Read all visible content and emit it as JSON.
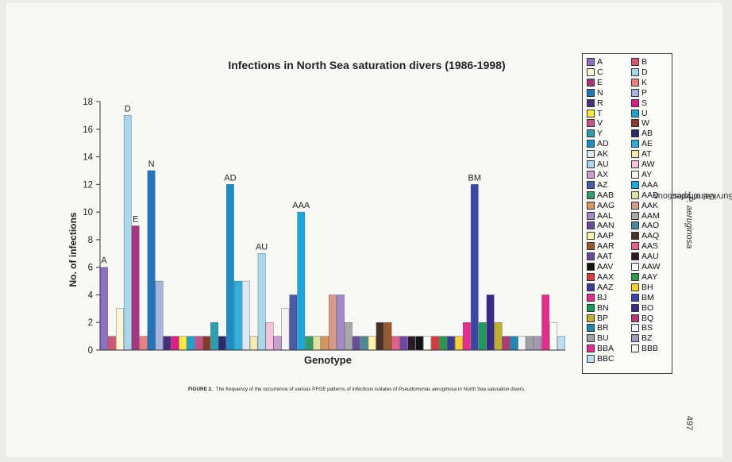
{
  "chart_data": {
    "type": "bar",
    "title": "Infections in North Sea saturation divers (1986-1998)",
    "xlabel": "Genotype",
    "ylabel": "No. of infections",
    "ylim": [
      0,
      18
    ],
    "yticks": [
      0,
      2,
      4,
      6,
      8,
      10,
      12,
      14,
      16,
      18
    ],
    "legend_position": "right",
    "grid": false,
    "categories": [
      "A",
      "B",
      "C",
      "D",
      "E",
      "K",
      "N",
      "P",
      "R",
      "S",
      "T",
      "U",
      "V",
      "W",
      "Y",
      "AB",
      "AD",
      "AE",
      "AK",
      "AT",
      "AU",
      "AW",
      "AX",
      "AY",
      "AZ",
      "AAA",
      "AAB",
      "AAD",
      "AAG",
      "AAK",
      "AAL",
      "AAM",
      "AAN",
      "AAO",
      "AAP",
      "AAQ",
      "AAR",
      "AAS",
      "AAT",
      "AAU",
      "AAV",
      "AAW",
      "AAX",
      "AAY",
      "AAZ",
      "BH",
      "BJ",
      "BM",
      "BN",
      "BO",
      "BP",
      "BQ",
      "BR",
      "BS",
      "BU",
      "BZ",
      "BBA",
      "BBB",
      "BBC"
    ],
    "values": [
      6,
      1,
      3,
      17,
      9,
      1,
      13,
      5,
      1,
      1,
      1,
      1,
      1,
      1,
      2,
      1,
      12,
      5,
      5,
      1,
      7,
      2,
      1,
      3,
      4,
      10,
      1,
      1,
      1,
      4,
      4,
      2,
      1,
      1,
      1,
      2,
      2,
      1,
      1,
      1,
      1,
      1,
      1,
      1,
      1,
      1,
      2,
      12,
      2,
      4,
      2,
      1,
      1,
      1,
      1,
      1,
      4,
      2,
      1
    ],
    "colors": [
      "#8e6fc6",
      "#d9566f",
      "#fff6d8",
      "#a8d8f0",
      "#a8357f",
      "#ee8080",
      "#1e77be",
      "#a7b4dd",
      "#4a2e7c",
      "#e21c87",
      "#ffe93c",
      "#1aa3cf",
      "#c7508a",
      "#8a3a2a",
      "#2aa0b0",
      "#2a2a6e",
      "#1a8ec7",
      "#2bb0e0",
      "#d9eaf2",
      "#f5eab0",
      "#a8d8ec",
      "#f4c4dc",
      "#c9a0cf",
      "#f4f4f0",
      "#4a5aa8",
      "#17a9e0",
      "#2f9b68",
      "#e2e2a0",
      "#d8955a",
      "#d99a8a",
      "#a08ac8",
      "#a8a8a8",
      "#6a4a9a",
      "#4a8a98",
      "#fff2a8",
      "#4a3026",
      "#9a5a30",
      "#ec5e8a",
      "#6a4aa8",
      "#2a1a2a",
      "#121212",
      "#fafafa",
      "#d93a3a",
      "#2a9a4a",
      "#3a3a9a",
      "#ffd22a",
      "#ea2a8c",
      "#3a48a8",
      "#1a9a5a",
      "#3a2a8c",
      "#c2b02a",
      "#b03a7c",
      "#1a8ab0",
      "#f4f4f4",
      "#a0a0a8",
      "#a898b8",
      "#ea2a8c",
      "#fafaf0",
      "#b8e0f0"
    ],
    "data_labels": {
      "A": "A",
      "D": "D",
      "E": "E",
      "N": "N",
      "AD": "AD",
      "AU": "AU",
      "AAA": "AAA",
      "BM": "BM"
    }
  },
  "caption": {
    "label": "FIGURE 2.",
    "text_before": "The frequency of the occurrence of various PFGE patterns of infectious isolates of ",
    "species": "Pseudomonas aeruginosa",
    "text_after": " in North Sea saturation divers."
  },
  "running_header": {
    "text_before": "Survival of Infectious ",
    "species": "P. aeruginosa",
    "text_after": " Genotypes"
  },
  "page_number": "497"
}
